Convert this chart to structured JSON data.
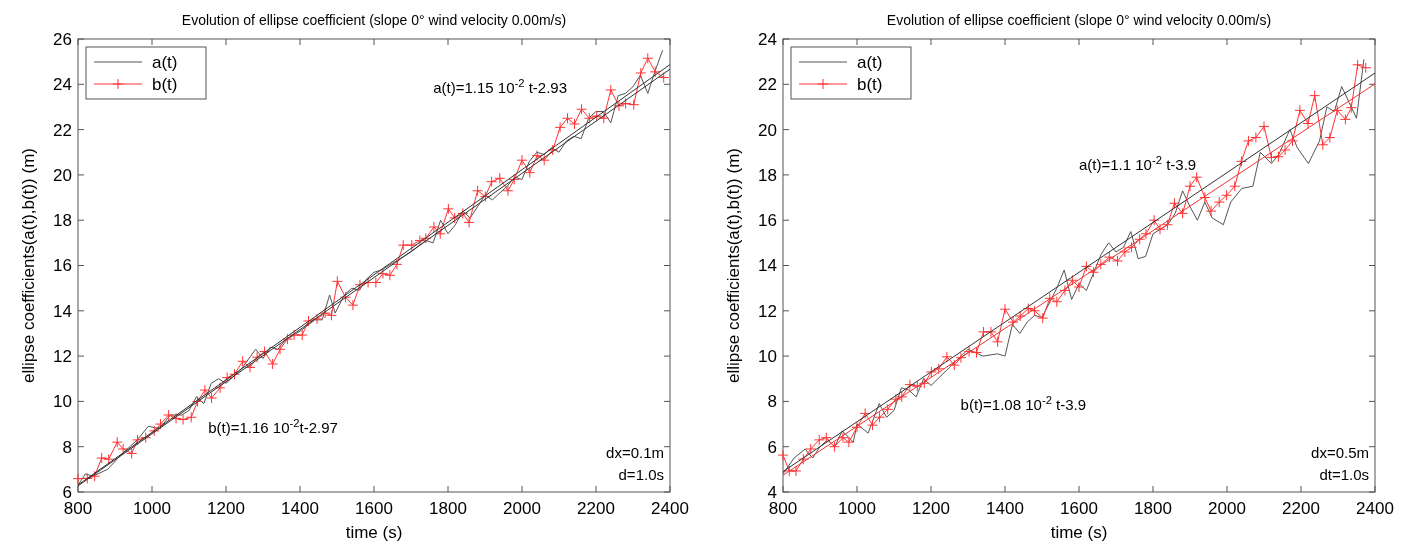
{
  "chart_data": [
    {
      "type": "line",
      "title": "Evolution of ellipse coefficient (slope 0° wind velocity 0.00m/s)",
      "xlabel": "time (s)",
      "ylabel": "ellipse coefficients(a(t),b(t)) (m)",
      "xlim": [
        800,
        2400
      ],
      "ylim": [
        6,
        26
      ],
      "xticks": [
        800,
        1000,
        1200,
        1400,
        1600,
        1800,
        2000,
        2200,
        2400
      ],
      "yticks": [
        6,
        8,
        10,
        12,
        14,
        16,
        18,
        20,
        22,
        24,
        26
      ],
      "grid": false,
      "legend": "top left",
      "series": [
        {
          "name": "a(t)",
          "color": "#555555",
          "x": [
            800,
            820,
            840,
            880,
            920,
            960,
            990,
            1020,
            1050,
            1080,
            1100,
            1120,
            1140,
            1160,
            1180,
            1200,
            1240,
            1280,
            1300,
            1320,
            1340,
            1360,
            1400,
            1440,
            1460,
            1480,
            1495,
            1520,
            1540,
            1560,
            1580,
            1600,
            1620,
            1640,
            1660,
            1700,
            1740,
            1760,
            1780,
            1800,
            1820,
            1840,
            1860,
            1900,
            1920,
            1960,
            1980,
            2000,
            2020,
            2040,
            2060,
            2080,
            2100,
            2120,
            2140,
            2160,
            2180,
            2200,
            2220,
            2240,
            2260,
            2280,
            2300,
            2320,
            2340,
            2360,
            2380
          ],
          "values": [
            6.3,
            6.8,
            6.7,
            7.0,
            7.7,
            8.3,
            8.9,
            8.8,
            9.4,
            9.4,
            9.6,
            10.2,
            9.9,
            10.8,
            11.0,
            10.8,
            11.4,
            12.3,
            11.9,
            12.4,
            12.3,
            12.7,
            13.1,
            13.6,
            13.6,
            14.7,
            13.9,
            14.7,
            15.0,
            14.9,
            15.4,
            15.7,
            15.8,
            16.0,
            16.2,
            16.6,
            17.1,
            17.0,
            18.0,
            17.4,
            17.8,
            18.4,
            18.1,
            19.1,
            18.9,
            19.5,
            19.9,
            19.8,
            20.6,
            21.0,
            20.9,
            21.2,
            21.0,
            21.5,
            21.7,
            21.6,
            22.5,
            22.8,
            22.8,
            22.3,
            23.5,
            23.6,
            23.9,
            24.4,
            23.6,
            24.6,
            25.5
          ]
        },
        {
          "name": "b(t)",
          "color": "#ff3333",
          "marker": "cross",
          "x": [
            800,
            825,
            845,
            864,
            883,
            906,
            922,
            945,
            961,
            983,
            1006,
            1023,
            1045,
            1065,
            1084,
            1106,
            1123,
            1143,
            1161,
            1184,
            1203,
            1223,
            1245,
            1265,
            1284,
            1304,
            1326,
            1346,
            1366,
            1384,
            1406,
            1423,
            1446,
            1468,
            1485,
            1501,
            1523,
            1543,
            1562,
            1584,
            1605,
            1624,
            1643,
            1662,
            1679,
            1702,
            1724,
            1740,
            1762,
            1779,
            1801,
            1818,
            1840,
            1857,
            1880,
            1901,
            1918,
            1940,
            1962,
            1979,
            2000,
            2021,
            2041,
            2060,
            2083,
            2103,
            2123,
            2142,
            2161,
            2182,
            2202,
            2221,
            2240,
            2262,
            2280,
            2302,
            2321,
            2340,
            2360,
            2383
          ],
          "values": [
            6.59,
            6.6,
            6.7,
            7.5,
            7.45,
            8.2,
            7.9,
            7.7,
            8.3,
            8.4,
            8.7,
            9.0,
            9.4,
            9.25,
            9.2,
            9.3,
            10.0,
            10.5,
            10.15,
            10.6,
            11.05,
            11.2,
            11.77,
            11.5,
            11.95,
            12.2,
            11.65,
            12.3,
            12.75,
            12.93,
            12.93,
            13.55,
            13.64,
            13.9,
            13.8,
            15.3,
            14.6,
            14.25,
            15.15,
            15.25,
            15.25,
            15.64,
            15.57,
            16.05,
            16.9,
            16.9,
            17.1,
            17.2,
            17.7,
            17.4,
            18.5,
            18.1,
            18.3,
            17.9,
            19.3,
            19.05,
            19.7,
            19.85,
            19.3,
            19.8,
            20.65,
            20.1,
            20.85,
            20.65,
            21.1,
            22.1,
            22.5,
            22.25,
            22.9,
            22.5,
            22.6,
            22.5,
            23.75,
            23.05,
            23.15,
            23.1,
            24.5,
            25.15,
            24.55,
            24.3
          ]
        },
        {
          "type": "line",
          "color": "#333333",
          "x": [
            800,
            2400
          ],
          "values": [
            6.27,
            24.67
          ]
        },
        {
          "type": "line",
          "color": "#333333",
          "x": [
            800,
            2400
          ],
          "values": [
            6.31,
            24.87
          ]
        }
      ],
      "annotations": [
        "a(t)=1.15 10$^{-2}$ t-2.93",
        "b(t)=1.16 10$^{-2}$t-2.97",
        "dx=0.1m",
        "d=1.0s"
      ]
    },
    {
      "type": "line",
      "title": "Evolution of ellipse coefficient (slope 0° wind velocity 0.00m/s)",
      "xlabel": "time (s)",
      "ylabel": "ellipse coefficients(a(t),b(t)) (m)",
      "xlim": [
        800,
        2400
      ],
      "ylim": [
        4,
        24
      ],
      "xticks": [
        800,
        1000,
        1200,
        1400,
        1600,
        1800,
        2000,
        2200,
        2400
      ],
      "yticks": [
        4,
        6,
        8,
        10,
        12,
        14,
        16,
        18,
        20,
        22,
        24
      ],
      "grid": false,
      "legend": "top left",
      "series": [
        {
          "name": "a(t)",
          "color": "#555555",
          "x": [
            800,
            830,
            860,
            880,
            900,
            920,
            940,
            960,
            990,
            1000,
            1030,
            1060,
            1080,
            1100,
            1120,
            1140,
            1160,
            1180,
            1200,
            1250,
            1300,
            1340,
            1380,
            1400,
            1420,
            1440,
            1460,
            1480,
            1500,
            1540,
            1560,
            1580,
            1600,
            1620,
            1660,
            1680,
            1700,
            1720,
            1740,
            1760,
            1780,
            1800,
            1820,
            1840,
            1860,
            1880,
            1900,
            1920,
            1940,
            1960,
            1990,
            2010,
            2040,
            2070,
            2090,
            2120,
            2140,
            2170,
            2190,
            2220,
            2250,
            2270,
            2290,
            2310,
            2330,
            2350,
            2370
          ],
          "values": [
            4.8,
            5.5,
            5.9,
            5.5,
            6.0,
            6.3,
            6.0,
            6.7,
            6.2,
            7.0,
            6.6,
            7.9,
            7.3,
            7.6,
            8.6,
            8.5,
            8.2,
            9.0,
            8.7,
            9.5,
            10.3,
            10.0,
            10.1,
            10.0,
            11.4,
            11.0,
            11.5,
            11.8,
            11.7,
            13.0,
            13.8,
            12.5,
            13.2,
            12.9,
            14.5,
            15.0,
            14.6,
            14.8,
            15.5,
            14.3,
            14.4,
            15.4,
            15.6,
            15.8,
            16.3,
            17.3,
            16.6,
            16.0,
            16.8,
            16.1,
            15.8,
            16.8,
            17.4,
            17.5,
            19.0,
            18.5,
            18.9,
            20.0,
            19.2,
            18.5,
            19.5,
            21.0,
            20.8,
            21.9,
            21.2,
            20.5,
            23.1
          ]
        },
        {
          "name": "b(t)",
          "color": "#ff3333",
          "marker": "cross",
          "x": [
            800,
            817,
            835,
            855,
            875,
            898,
            917,
            939,
            962,
            978,
            1000,
            1022,
            1042,
            1061,
            1083,
            1105,
            1121,
            1143,
            1163,
            1182,
            1201,
            1221,
            1243,
            1263,
            1281,
            1303,
            1323,
            1342,
            1362,
            1380,
            1400,
            1422,
            1441,
            1463,
            1480,
            1502,
            1521,
            1540,
            1562,
            1582,
            1600,
            1620,
            1639,
            1659,
            1682,
            1704,
            1724,
            1742,
            1764,
            1781,
            1803,
            1819,
            1839,
            1858,
            1880,
            1900,
            1918,
            1940,
            1957,
            1979,
            1999,
            2021,
            2039,
            2058,
            2078,
            2100,
            2120,
            2139,
            2157,
            2177,
            2197,
            2219,
            2237,
            2259,
            2278,
            2298,
            2320,
            2336,
            2353,
            2375
          ],
          "values": [
            5.63,
            4.93,
            4.93,
            5.45,
            5.9,
            6.3,
            6.4,
            6.0,
            6.4,
            6.2,
            6.86,
            7.47,
            6.95,
            7.3,
            7.65,
            8.1,
            8.2,
            8.74,
            8.67,
            8.8,
            9.3,
            9.44,
            9.97,
            9.6,
            9.93,
            10.2,
            10.16,
            11.07,
            11.07,
            10.63,
            12.07,
            11.5,
            11.77,
            12.1,
            12.0,
            11.68,
            12.55,
            12.4,
            12.9,
            13.35,
            13.05,
            13.96,
            13.7,
            14.05,
            14.37,
            14.2,
            14.6,
            14.8,
            15.16,
            15.4,
            16.0,
            15.6,
            15.8,
            16.75,
            16.3,
            17.5,
            17.9,
            17.0,
            16.4,
            16.8,
            17.1,
            17.5,
            18.6,
            19.5,
            19.65,
            20.14,
            18.77,
            18.8,
            19.1,
            19.5,
            20.85,
            20.27,
            21.5,
            19.33,
            19.65,
            20.85,
            20.45,
            20.97,
            22.86,
            22.73
          ]
        },
        {
          "type": "line",
          "color": "#333333",
          "x": [
            800,
            2400
          ],
          "values": [
            4.9,
            22.5
          ]
        },
        {
          "type": "line",
          "color": "#ee3333",
          "x": [
            800,
            2400
          ],
          "values": [
            4.74,
            22.02
          ]
        }
      ],
      "annotations": [
        "a(t)=1.1 10$^{-2}$ t-3.9",
        "b(t)=1.08 10$^{-2}$ t-3.9",
        "dx=0.5m",
        "dt=1.0s"
      ]
    }
  ]
}
